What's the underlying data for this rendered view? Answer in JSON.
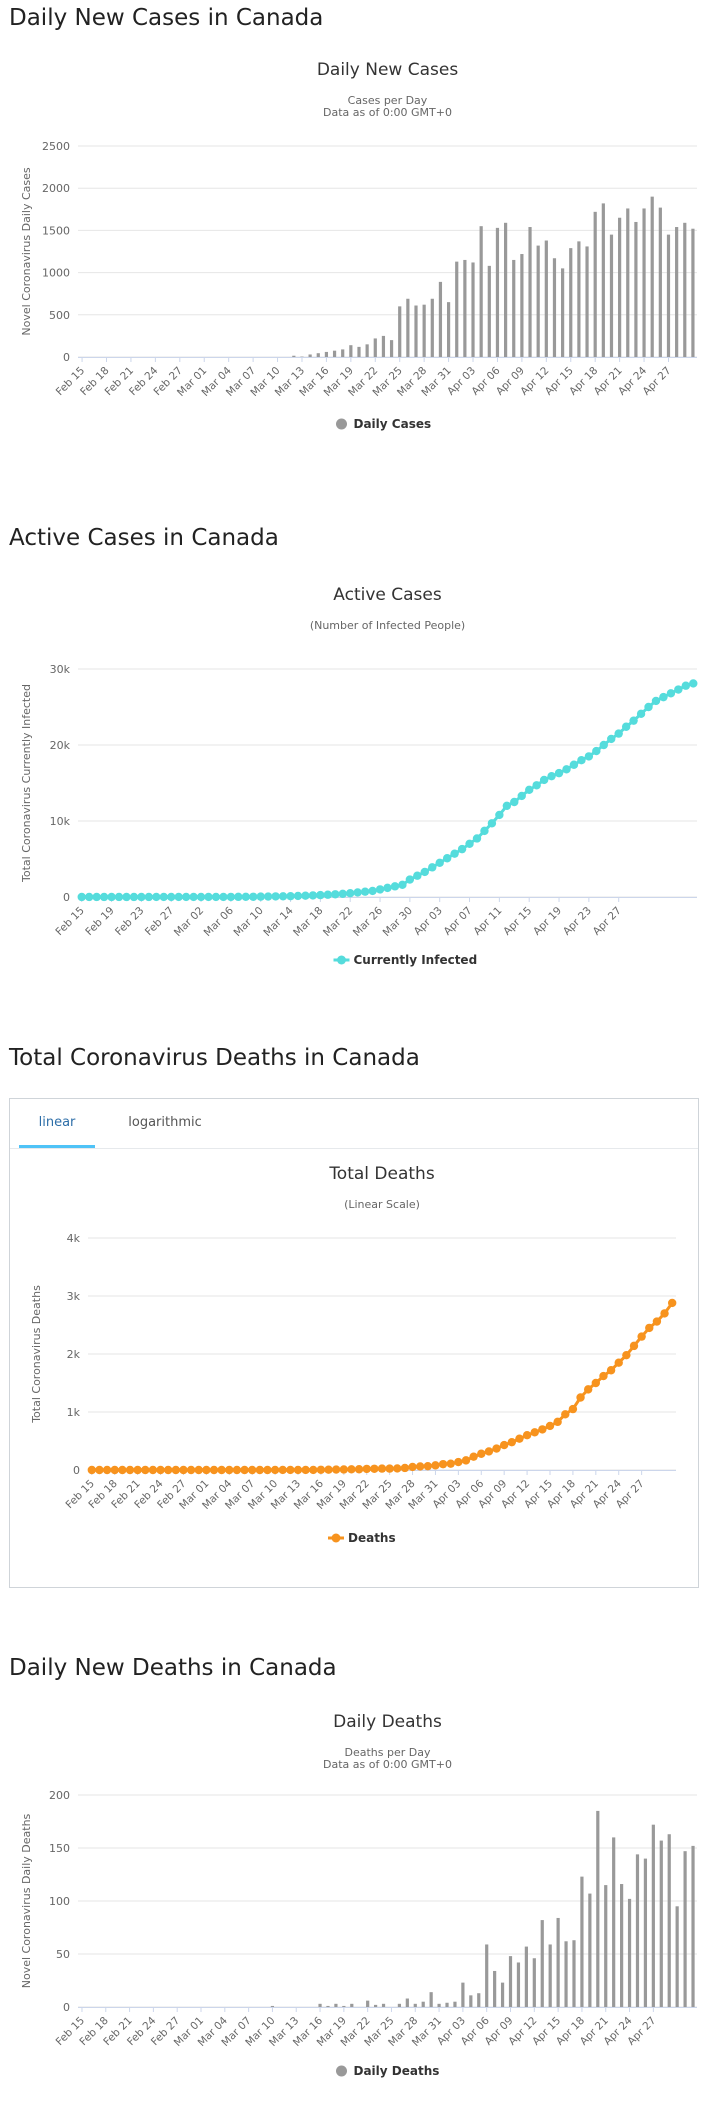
{
  "sections": {
    "daily_cases": {
      "heading": "Daily New Cases in Canada"
    },
    "active_cases": {
      "heading": "Active Cases in Canada"
    },
    "total_deaths": {
      "heading": "Total Coronavirus Deaths in Canada",
      "tabs": [
        {
          "label": "linear",
          "active": true
        },
        {
          "label": "logarithmic",
          "active": false
        }
      ]
    },
    "daily_deaths": {
      "heading": "Daily New Deaths in Canada"
    }
  },
  "chart_data": [
    {
      "type": "bar",
      "title": "Daily New Cases",
      "subtitle": [
        "Cases per Day",
        "Data as of 0:00 GMT+0"
      ],
      "ylabel": "Novel Coronavirus Daily Cases",
      "ylim": [
        0,
        2500
      ],
      "yticks": [
        "0",
        "500",
        "1000",
        "1500",
        "2000",
        "2500"
      ],
      "ytick_values": [
        0,
        500,
        1000,
        1500,
        2000,
        2500
      ],
      "x_start": "Feb 15",
      "x_end": "Apr 28",
      "xticks": [
        "Feb 15",
        "Feb 18",
        "Feb 21",
        "Feb 24",
        "Feb 27",
        "Mar 01",
        "Mar 04",
        "Mar 07",
        "Mar 10",
        "Mar 13",
        "Mar 16",
        "Mar 19",
        "Mar 22",
        "Mar 25",
        "Mar 28",
        "Mar 31",
        "Apr 03",
        "Apr 06",
        "Apr 09",
        "Apr 12",
        "Apr 15",
        "Apr 18",
        "Apr 21",
        "Apr 24",
        "Apr 27"
      ],
      "color": "#999999",
      "legend": "bottom",
      "series": [
        {
          "name": "Daily Cases",
          "values": [
            0,
            0,
            0,
            0,
            0,
            0,
            0,
            0,
            0,
            0,
            0,
            0,
            0,
            0,
            0,
            0,
            0,
            0,
            0,
            0,
            0,
            0,
            0,
            0,
            0,
            0,
            15,
            5,
            30,
            45,
            60,
            75,
            90,
            140,
            120,
            150,
            220,
            250,
            200,
            600,
            690,
            610,
            620,
            690,
            890,
            650,
            1130,
            1150,
            1120,
            1550,
            1080,
            1530,
            1590,
            1150,
            1220,
            1540,
            1320,
            1380,
            1170,
            1050,
            1290,
            1370,
            1310,
            1720,
            1820,
            1450,
            1650,
            1760,
            1600,
            1760,
            1900,
            1770,
            1450,
            1540,
            1590,
            1520
          ]
        }
      ]
    },
    {
      "type": "line",
      "title": "Active Cases",
      "subtitle": [
        "(Number of Infected People)"
      ],
      "ylabel": "Total Coronavirus Currently Infected",
      "ylim": [
        0,
        30000
      ],
      "yticks": [
        "0",
        "10k",
        "20k",
        "30k"
      ],
      "ytick_values": [
        0,
        10000,
        20000,
        30000
      ],
      "x_start": "Feb 15",
      "x_end": "Apr 28",
      "xticks": [
        "Feb 15",
        "Feb 19",
        "Feb 23",
        "Feb 27",
        "Mar 02",
        "Mar 06",
        "Mar 10",
        "Mar 14",
        "Mar 18",
        "Mar 22",
        "Mar 26",
        "Mar 30",
        "Apr 03",
        "Apr 07",
        "Apr 11",
        "Apr 15",
        "Apr 19",
        "Apr 23",
        "Apr 27"
      ],
      "color": "#55dcdc",
      "legend": "bottom",
      "series": [
        {
          "name": "Currently Infected",
          "values": [
            4,
            4,
            4,
            4,
            4,
            4,
            4,
            4,
            4,
            4,
            5,
            5,
            5,
            6,
            6,
            6,
            6,
            8,
            10,
            12,
            14,
            20,
            25,
            30,
            50,
            60,
            80,
            90,
            110,
            140,
            170,
            210,
            250,
            300,
            360,
            420,
            500,
            600,
            700,
            800,
            1000,
            1200,
            1400,
            1600,
            2300,
            2800,
            3300,
            3900,
            4500,
            5100,
            5700,
            6300,
            7000,
            7700,
            8700,
            9700,
            10800,
            12000,
            12500,
            13300,
            14100,
            14700,
            15400,
            15900,
            16300,
            16800,
            17400,
            18000,
            18500,
            19200,
            20000,
            20800,
            21500,
            22400,
            23200,
            24100,
            25000,
            25800,
            26300,
            26800,
            27300,
            27800,
            28100
          ]
        }
      ]
    },
    {
      "type": "line",
      "title": "Total Deaths",
      "subtitle": [
        "(Linear Scale)"
      ],
      "ylabel": "Total Coronavirus Deaths",
      "ylim": [
        0,
        4000
      ],
      "yticks": [
        "0",
        "1k",
        "2k",
        "3k",
        "4k"
      ],
      "ytick_values": [
        0,
        1000,
        2000,
        3000,
        4000
      ],
      "x_start": "Feb 15",
      "x_end": "Apr 28",
      "xticks": [
        "Feb 15",
        "Feb 18",
        "Feb 21",
        "Feb 24",
        "Feb 27",
        "Mar 01",
        "Mar 04",
        "Mar 07",
        "Mar 10",
        "Mar 13",
        "Mar 16",
        "Mar 19",
        "Mar 22",
        "Mar 25",
        "Mar 28",
        "Mar 31",
        "Apr 03",
        "Apr 06",
        "Apr 09",
        "Apr 12",
        "Apr 15",
        "Apr 18",
        "Apr 21",
        "Apr 24",
        "Apr 27"
      ],
      "color": "#f7931e",
      "legend": "bottom",
      "series": [
        {
          "name": "Deaths",
          "values": [
            0,
            0,
            0,
            0,
            0,
            0,
            0,
            0,
            0,
            0,
            0,
            0,
            0,
            0,
            0,
            0,
            0,
            0,
            0,
            0,
            0,
            0,
            0,
            0,
            1,
            1,
            1,
            1,
            1,
            1,
            4,
            5,
            8,
            9,
            12,
            13,
            19,
            21,
            24,
            24,
            27,
            35,
            53,
            61,
            66,
            80,
            101,
            109,
            137,
            166,
            230,
            280,
            320,
            370,
            430,
            480,
            540,
            600,
            650,
            700,
            760,
            830,
            960,
            1050,
            1250,
            1390,
            1500,
            1620,
            1720,
            1850,
            1980,
            2140,
            2300,
            2450,
            2560,
            2700,
            2880
          ]
        }
      ]
    },
    {
      "type": "bar",
      "title": "Daily Deaths",
      "subtitle": [
        "Deaths per Day",
        "Data as of 0:00 GMT+0"
      ],
      "ylabel": "Novel Coronavirus Daily Deaths",
      "ylim": [
        0,
        200
      ],
      "yticks": [
        "0",
        "50",
        "100",
        "150",
        "200"
      ],
      "ytick_values": [
        0,
        50,
        100,
        150,
        200
      ],
      "x_start": "Feb 15",
      "x_end": "Apr 28",
      "xticks": [
        "Feb 15",
        "Feb 18",
        "Feb 21",
        "Feb 24",
        "Feb 27",
        "Mar 01",
        "Mar 04",
        "Mar 07",
        "Mar 10",
        "Mar 13",
        "Mar 16",
        "Mar 19",
        "Mar 22",
        "Mar 25",
        "Mar 28",
        "Mar 31",
        "Apr 03",
        "Apr 06",
        "Apr 09",
        "Apr 12",
        "Apr 15",
        "Apr 18",
        "Apr 21",
        "Apr 24",
        "Apr 27"
      ],
      "color": "#999999",
      "legend": "bottom",
      "series": [
        {
          "name": "Daily Deaths",
          "values": [
            0,
            0,
            0,
            0,
            0,
            0,
            0,
            0,
            0,
            0,
            0,
            0,
            0,
            0,
            0,
            0,
            0,
            0,
            0,
            0,
            0,
            0,
            0,
            0,
            1,
            0,
            0,
            0,
            0,
            0,
            3,
            1,
            3,
            1,
            3,
            0,
            6,
            2,
            3,
            0,
            3,
            8,
            3,
            5,
            14,
            3,
            4,
            5,
            23,
            11,
            13,
            59,
            34,
            23,
            48,
            42,
            57,
            46,
            82,
            59,
            84,
            62,
            63,
            123,
            107,
            185,
            115,
            160,
            116,
            102,
            144,
            140,
            172,
            157,
            163,
            95,
            147,
            152
          ]
        }
      ]
    }
  ]
}
